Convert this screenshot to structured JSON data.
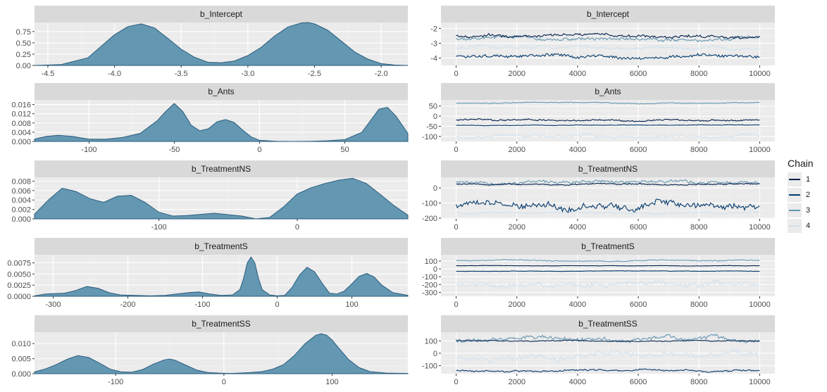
{
  "chart_data": [
    {
      "type": "area",
      "title": "b_Intercept",
      "panel": "density",
      "xlim": [
        -4.6,
        -1.8
      ],
      "ylim": [
        0,
        0.95
      ],
      "xticks": [
        -4.5,
        -4.0,
        -3.5,
        -3.0,
        -2.5,
        -2.0
      ],
      "xtick_labels": [
        "-4.5",
        "-4.0",
        "-3.5",
        "-3.0",
        "-2.5",
        "-2.0"
      ],
      "yticks": [
        0,
        0.25,
        0.5,
        0.75
      ],
      "ytick_labels": [
        "0.00",
        "0.25",
        "0.50",
        "0.75"
      ],
      "x": [
        -4.6,
        -4.4,
        -4.2,
        -4.0,
        -3.9,
        -3.8,
        -3.7,
        -3.6,
        -3.5,
        -3.4,
        -3.3,
        -3.2,
        -3.1,
        -3.0,
        -2.9,
        -2.8,
        -2.7,
        -2.6,
        -2.55,
        -2.5,
        -2.4,
        -2.3,
        -2.2,
        -2.1,
        -2.0,
        -1.9,
        -1.8
      ],
      "y": [
        0.0,
        0.02,
        0.17,
        0.68,
        0.86,
        0.92,
        0.83,
        0.6,
        0.36,
        0.18,
        0.07,
        0.06,
        0.1,
        0.22,
        0.4,
        0.65,
        0.85,
        0.94,
        0.95,
        0.92,
        0.78,
        0.54,
        0.3,
        0.14,
        0.04,
        0.01,
        0.0
      ]
    },
    {
      "type": "line",
      "title": "b_Intercept",
      "panel": "trace",
      "xlim": [
        -500,
        10500
      ],
      "ylim": [
        -4.5,
        -1.6
      ],
      "xticks": [
        0,
        2000,
        4000,
        6000,
        8000,
        10000
      ],
      "xtick_labels": [
        "0",
        "2000",
        "4000",
        "6000",
        "8000",
        "10000"
      ],
      "yticks": [
        -4,
        -3,
        -2
      ],
      "ytick_labels": [
        "-4",
        "-3",
        "-2"
      ],
      "series": [
        {
          "name": "1",
          "level": -2.5,
          "amp": 0.14
        },
        {
          "name": "2",
          "level": -3.9,
          "amp": 0.15
        },
        {
          "name": "3",
          "level": -2.7,
          "amp": 0.16
        },
        {
          "name": "4",
          "level": -3.3,
          "amp": 0.14
        }
      ]
    },
    {
      "type": "area",
      "title": "b_Ants",
      "panel": "density",
      "xlim": [
        -132,
        87
      ],
      "ylim": [
        0,
        0.018
      ],
      "xticks": [
        -100,
        -50,
        0,
        50
      ],
      "xtick_labels": [
        "-100",
        "-50",
        "0",
        "50"
      ],
      "yticks": [
        0,
        0.004,
        0.008,
        0.012,
        0.016
      ],
      "ytick_labels": [
        "0.000",
        "0.004",
        "0.008",
        "0.012",
        "0.016"
      ],
      "x": [
        -132,
        -125,
        -118,
        -110,
        -100,
        -90,
        -80,
        -70,
        -60,
        -55,
        -50,
        -45,
        -40,
        -35,
        -30,
        -25,
        -20,
        -15,
        -10,
        -5,
        0,
        10,
        20,
        30,
        40,
        50,
        60,
        65,
        70,
        75,
        80,
        87
      ],
      "y": [
        0.001,
        0.0022,
        0.0027,
        0.0022,
        0.001,
        0.001,
        0.0018,
        0.0035,
        0.009,
        0.013,
        0.0165,
        0.013,
        0.007,
        0.0046,
        0.0055,
        0.0085,
        0.0095,
        0.0083,
        0.005,
        0.002,
        0.0005,
        0.0001,
        0.0,
        0.0001,
        0.0003,
        0.0008,
        0.004,
        0.009,
        0.014,
        0.0148,
        0.011,
        0.0035
      ]
    },
    {
      "type": "line",
      "title": "b_Ants",
      "panel": "trace",
      "xlim": [
        -500,
        10500
      ],
      "ylim": [
        -125,
        80
      ],
      "xticks": [
        0,
        2000,
        4000,
        6000,
        8000,
        10000
      ],
      "xtick_labels": [
        "0",
        "2000",
        "4000",
        "6000",
        "8000",
        "10000"
      ],
      "yticks": [
        -100,
        -50,
        0,
        50
      ],
      "ytick_labels": [
        "-100",
        "-50",
        "0",
        "50"
      ],
      "series": [
        {
          "name": "1",
          "level": -20,
          "amp": 6
        },
        {
          "name": "2",
          "level": -45,
          "amp": 2
        },
        {
          "name": "3",
          "level": 65,
          "amp": 3
        },
        {
          "name": "4",
          "level": -100,
          "amp": 10
        }
      ]
    },
    {
      "type": "area",
      "title": "b_TreatmentNS",
      "panel": "density",
      "xlim": [
        -190,
        80
      ],
      "ylim": [
        0,
        0.0088
      ],
      "xticks": [
        -100,
        0
      ],
      "xtick_labels": [
        "-100",
        "0"
      ],
      "yticks": [
        0,
        0.002,
        0.004,
        0.006,
        0.008
      ],
      "ytick_labels": [
        "0.000",
        "0.002",
        "0.004",
        "0.006",
        "0.008"
      ],
      "x": [
        -190,
        -180,
        -170,
        -160,
        -150,
        -140,
        -130,
        -120,
        -110,
        -100,
        -90,
        -80,
        -60,
        -40,
        -30,
        -20,
        -10,
        0,
        10,
        20,
        30,
        40,
        50,
        60,
        70,
        80
      ],
      "y": [
        0.001,
        0.004,
        0.0065,
        0.0058,
        0.0043,
        0.0035,
        0.0048,
        0.005,
        0.0035,
        0.0014,
        0.0006,
        0.0007,
        0.0012,
        0.0006,
        0.0,
        0.0003,
        0.0025,
        0.0053,
        0.0066,
        0.0075,
        0.0082,
        0.0086,
        0.0075,
        0.0052,
        0.0028,
        0.0008
      ]
    },
    {
      "type": "line",
      "title": "b_TreatmentNS",
      "panel": "trace",
      "xlim": [
        -500,
        10500
      ],
      "ylim": [
        -205,
        70
      ],
      "xticks": [
        0,
        2000,
        4000,
        6000,
        8000,
        10000
      ],
      "xtick_labels": [
        "0",
        "2000",
        "4000",
        "6000",
        "8000",
        "10000"
      ],
      "yticks": [
        -200,
        -100,
        0
      ],
      "ytick_labels": [
        "-200",
        "-100",
        "0"
      ],
      "series": [
        {
          "name": "1",
          "level": 25,
          "amp": 6
        },
        {
          "name": "2",
          "level": -120,
          "amp": 30
        },
        {
          "name": "3",
          "level": 40,
          "amp": 15
        },
        {
          "name": "4",
          "level": -165,
          "amp": 12
        }
      ]
    },
    {
      "type": "area",
      "title": "b_TreatmentS",
      "panel": "density",
      "xlim": [
        -325,
        175
      ],
      "ylim": [
        0,
        0.0093
      ],
      "xticks": [
        -300,
        -200,
        -100,
        0,
        100
      ],
      "xtick_labels": [
        "-300",
        "-200",
        "-100",
        "0",
        "100"
      ],
      "yticks": [
        0,
        0.0025,
        0.005,
        0.0075
      ],
      "ytick_labels": [
        "0.0000",
        "0.0025",
        "0.0050",
        "0.0075"
      ],
      "x": [
        -325,
        -310,
        -300,
        -285,
        -270,
        -255,
        -240,
        -225,
        -210,
        -190,
        -170,
        -150,
        -135,
        -120,
        -105,
        -90,
        -75,
        -60,
        -50,
        -45,
        -40,
        -35,
        -30,
        -25,
        -20,
        -10,
        0,
        10,
        20,
        30,
        40,
        50,
        60,
        70,
        80,
        90,
        100,
        110,
        120,
        130,
        140,
        155,
        175
      ],
      "y": [
        0.0001,
        0.0005,
        0.0006,
        0.0007,
        0.0013,
        0.0022,
        0.0018,
        0.0008,
        0.0003,
        0.0002,
        0.0001,
        0.0002,
        0.0005,
        0.0008,
        0.001,
        0.0005,
        0.0002,
        0.0003,
        0.0015,
        0.004,
        0.0075,
        0.0088,
        0.0075,
        0.004,
        0.0015,
        0.0003,
        0.0001,
        0.0002,
        0.002,
        0.0048,
        0.0065,
        0.0055,
        0.003,
        0.0007,
        0.0005,
        0.0012,
        0.0028,
        0.0045,
        0.0051,
        0.0043,
        0.0025,
        0.0008,
        0.0002
      ]
    },
    {
      "type": "line",
      "title": "b_TreatmentS",
      "panel": "trace",
      "xlim": [
        -500,
        10500
      ],
      "ylim": [
        -350,
        180
      ],
      "xticks": [
        0,
        2000,
        4000,
        6000,
        8000,
        10000
      ],
      "xtick_labels": [
        "0",
        "2000",
        "4000",
        "6000",
        "8000",
        "10000"
      ],
      "yticks": [
        -300,
        -200,
        -100,
        0,
        100
      ],
      "ytick_labels": [
        "-300",
        "-200",
        "-100",
        "0",
        "100"
      ],
      "series": [
        {
          "name": "1",
          "level": 40,
          "amp": 3
        },
        {
          "name": "2",
          "level": -30,
          "amp": 4
        },
        {
          "name": "3",
          "level": 110,
          "amp": 10
        },
        {
          "name": "4",
          "level": -200,
          "amp": 50
        }
      ]
    },
    {
      "type": "area",
      "title": "b_TreatmentSS",
      "panel": "density",
      "xlim": [
        -175,
        170
      ],
      "ylim": [
        0,
        0.0138
      ],
      "xticks": [
        -100,
        0,
        100
      ],
      "xtick_labels": [
        "-100",
        "0",
        "100"
      ],
      "yticks": [
        0,
        0.005,
        0.01
      ],
      "ytick_labels": [
        "0.000",
        "0.005",
        "0.010"
      ],
      "x": [
        -175,
        -165,
        -155,
        -145,
        -135,
        -125,
        -115,
        -105,
        -95,
        -85,
        -75,
        -65,
        -55,
        -50,
        -45,
        -35,
        -25,
        -15,
        -5,
        5,
        15,
        25,
        35,
        45,
        55,
        65,
        75,
        85,
        90,
        95,
        100,
        105,
        115,
        125,
        135,
        150,
        170
      ],
      "y": [
        0.0006,
        0.0016,
        0.003,
        0.0048,
        0.006,
        0.0054,
        0.0035,
        0.0015,
        0.0006,
        0.0005,
        0.0014,
        0.0032,
        0.0046,
        0.0049,
        0.0045,
        0.0028,
        0.0012,
        0.0004,
        0.0002,
        0.0001,
        0.0002,
        0.0004,
        0.0007,
        0.0015,
        0.003,
        0.006,
        0.01,
        0.0128,
        0.0133,
        0.0128,
        0.0112,
        0.009,
        0.0048,
        0.002,
        0.0007,
        0.0002,
        0.0001
      ]
    },
    {
      "type": "line",
      "title": "b_TreatmentSS",
      "panel": "trace",
      "xlim": [
        -500,
        10500
      ],
      "ylim": [
        -165,
        170
      ],
      "xticks": [
        0,
        2000,
        4000,
        6000,
        8000,
        10000
      ],
      "xtick_labels": [
        "0",
        "2000",
        "4000",
        "6000",
        "8000",
        "10000"
      ],
      "yticks": [
        -100,
        0,
        100
      ],
      "ytick_labels": [
        "-100",
        "0",
        "100"
      ],
      "series": [
        {
          "name": "1",
          "level": 100,
          "amp": 5
        },
        {
          "name": "2",
          "level": -140,
          "amp": 10
        },
        {
          "name": "3",
          "level": 110,
          "amp": 25
        },
        {
          "name": "4",
          "level": -20,
          "amp": 35
        }
      ]
    }
  ],
  "legend": {
    "title": "Chain",
    "items": [
      {
        "label": "1"
      },
      {
        "label": "2"
      },
      {
        "label": "3"
      },
      {
        "label": "4"
      }
    ]
  },
  "colors": {
    "density_fill": "#6497b1",
    "density_line": "#2b5d7e",
    "panel_bg": "#ebebeb",
    "strip_bg": "#d9d9d9",
    "grid": "#ffffff",
    "chains": [
      "#011f4b",
      "#03396c",
      "#6497b1",
      "#d2e2ef"
    ]
  }
}
